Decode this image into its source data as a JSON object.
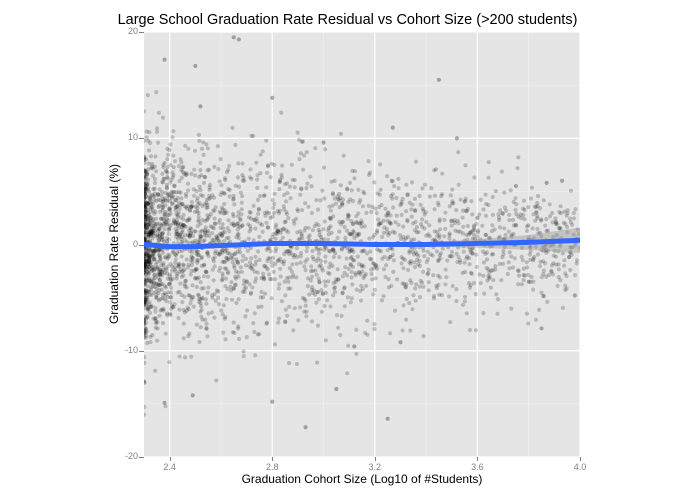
{
  "chart_data": {
    "type": "scatter",
    "title": "Large School Graduation Rate Residual vs Cohort Size (>200 students)",
    "xlabel": "Graduation Cohort Size (Log10 of #Students)",
    "ylabel": "Graduation Rate Residual (%)",
    "xlim": [
      2.3,
      4.0
    ],
    "ylim": [
      -20,
      20
    ],
    "x_ticks": [
      2.4,
      2.8,
      3.2,
      3.6,
      4.0
    ],
    "x_tick_labels": [
      "2.4",
      "2.8",
      "3.2",
      "3.6",
      "4.0"
    ],
    "y_ticks": [
      -20,
      -10,
      0,
      10,
      20
    ],
    "y_tick_labels": [
      "-20",
      "-10",
      "0",
      "10",
      "20"
    ],
    "grid": true,
    "background": "#e5e5e5",
    "point_color": "#000000",
    "point_alpha": 0.2,
    "smooth_line_color": "#3366ff",
    "confidence_band_color": "#999999",
    "legend": null,
    "series": [
      {
        "name": "schools",
        "type": "scatter",
        "description": "Dense cloud of semi-transparent points; densest at x 2.3-2.8, residuals mostly -10 to +10, sparse toward x=4.0",
        "sample_points": [
          {
            "x": 2.65,
            "y": 19.5
          },
          {
            "x": 2.67,
            "y": 19.3
          },
          {
            "x": 2.38,
            "y": 17.4
          },
          {
            "x": 2.5,
            "y": 16.8
          },
          {
            "x": 3.45,
            "y": 15.5
          },
          {
            "x": 2.52,
            "y": 13.0
          },
          {
            "x": 2.8,
            "y": 13.8
          },
          {
            "x": 3.27,
            "y": 11.0
          },
          {
            "x": 3.52,
            "y": 10.0
          },
          {
            "x": 3.0,
            "y": 9.6
          },
          {
            "x": 3.87,
            "y": 5.8
          },
          {
            "x": 3.93,
            "y": 6.0
          },
          {
            "x": 3.75,
            "y": 5.5
          },
          {
            "x": 3.6,
            "y": 2.5
          },
          {
            "x": 3.8,
            "y": -3.5
          },
          {
            "x": 3.85,
            "y": -7.9
          },
          {
            "x": 3.98,
            "y": -4.8
          },
          {
            "x": 3.3,
            "y": -9.2
          },
          {
            "x": 3.12,
            "y": -9.6
          },
          {
            "x": 2.3,
            "y": -12.9
          },
          {
            "x": 2.38,
            "y": -14.9
          },
          {
            "x": 2.49,
            "y": -14.2
          },
          {
            "x": 2.8,
            "y": -14.8
          },
          {
            "x": 3.05,
            "y": -13.6
          },
          {
            "x": 3.25,
            "y": -16.4
          },
          {
            "x": 2.93,
            "y": -17.2
          }
        ]
      },
      {
        "name": "loess smooth",
        "type": "line",
        "x": [
          2.3,
          2.4,
          2.5,
          2.6,
          2.8,
          3.0,
          3.2,
          3.4,
          3.6,
          3.8,
          4.0
        ],
        "y": [
          0.0,
          -0.2,
          -0.2,
          -0.1,
          0.1,
          0.1,
          0.0,
          0.0,
          0.1,
          0.2,
          0.4
        ],
        "ci_lower": [
          -0.2,
          -0.3,
          -0.3,
          -0.2,
          0.0,
          0.0,
          -0.1,
          -0.2,
          -0.3,
          -0.5,
          -0.8
        ],
        "ci_upper": [
          0.2,
          -0.1,
          -0.1,
          0.0,
          0.2,
          0.2,
          0.1,
          0.2,
          0.5,
          0.9,
          1.6
        ]
      }
    ]
  }
}
